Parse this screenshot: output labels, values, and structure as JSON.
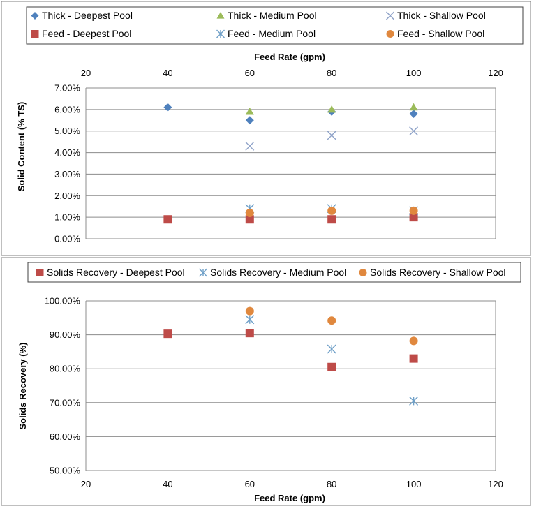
{
  "colors": {
    "deepest": "#be4b48",
    "deepest_diamond": "#4f81bd",
    "medium": "#9bbb59",
    "shallow_x": "#8ea2c8",
    "feed_medium": "#6fa0c8",
    "shallow": "#e0883e",
    "grid": "#8c8c8c",
    "frame": "#7f7f7f"
  },
  "chart_data": [
    {
      "type": "scatter",
      "title": "",
      "xlabel": "Feed Rate (gpm)",
      "ylabel": "Solid Content (% TS)",
      "xlim": [
        20,
        120
      ],
      "x_ticks": [
        "20",
        "40",
        "60",
        "80",
        "100",
        "120"
      ],
      "x_tick_values": [
        20,
        40,
        60,
        80,
        100,
        120
      ],
      "ylim": [
        0,
        7
      ],
      "y_ticks": [
        "0.00%",
        "1.00%",
        "2.00%",
        "3.00%",
        "4.00%",
        "5.00%",
        "6.00%",
        "7.00%"
      ],
      "y_tick_values": [
        0,
        1,
        2,
        3,
        4,
        5,
        6,
        7
      ],
      "x_axis_position": "top",
      "grid": true,
      "legend_position": "top",
      "series": [
        {
          "name": "Thick - Deepest Pool",
          "marker": "diamond",
          "color_key": "deepest_diamond",
          "x": [
            40,
            60,
            80,
            100
          ],
          "y": [
            6.1,
            5.5,
            5.9,
            5.8
          ]
        },
        {
          "name": "Thick - Medium Pool",
          "marker": "triangle",
          "color_key": "medium",
          "x": [
            60,
            80,
            100
          ],
          "y": [
            5.9,
            6.0,
            6.1
          ]
        },
        {
          "name": "Thick - Shallow Pool",
          "marker": "x",
          "color_key": "shallow_x",
          "x": [
            60,
            80,
            100
          ],
          "y": [
            4.3,
            4.8,
            5.0
          ]
        },
        {
          "name": "Feed - Deepest Pool",
          "marker": "square",
          "color_key": "deepest",
          "x": [
            40,
            60,
            80,
            100
          ],
          "y": [
            0.9,
            0.9,
            0.9,
            1.0
          ]
        },
        {
          "name": "Feed - Medium Pool",
          "marker": "asterisk",
          "color_key": "feed_medium",
          "x": [
            60,
            80,
            100
          ],
          "y": [
            1.4,
            1.4,
            1.3
          ]
        },
        {
          "name": "Feed - Shallow Pool",
          "marker": "circle",
          "color_key": "shallow",
          "x": [
            60,
            80,
            100
          ],
          "y": [
            1.2,
            1.3,
            1.3
          ]
        }
      ]
    },
    {
      "type": "scatter",
      "title": "",
      "xlabel": "Feed Rate (gpm)",
      "ylabel": "Solids Recovery (%)",
      "xlim": [
        20,
        120
      ],
      "x_ticks": [
        "20",
        "40",
        "60",
        "80",
        "100",
        "120"
      ],
      "x_tick_values": [
        20,
        40,
        60,
        80,
        100,
        120
      ],
      "ylim": [
        50,
        100
      ],
      "y_ticks": [
        "50.00%",
        "60.00%",
        "70.00%",
        "80.00%",
        "90.00%",
        "100.00%"
      ],
      "y_tick_values": [
        50,
        60,
        70,
        80,
        90,
        100
      ],
      "x_axis_position": "bottom",
      "grid": true,
      "legend_position": "top",
      "series": [
        {
          "name": "Solids Recovery - Deepest Pool",
          "marker": "square",
          "color_key": "deepest",
          "x": [
            40,
            60,
            80,
            100
          ],
          "y": [
            90.3,
            90.5,
            80.5,
            83.0
          ]
        },
        {
          "name": "Solids Recovery - Medium Pool",
          "marker": "asterisk",
          "color_key": "feed_medium",
          "x": [
            60,
            80,
            100
          ],
          "y": [
            94.5,
            85.8,
            70.5
          ]
        },
        {
          "name": "Solids Recovery - Shallow Pool",
          "marker": "circle",
          "color_key": "shallow",
          "x": [
            60,
            80,
            100
          ],
          "y": [
            97.0,
            94.2,
            88.2
          ]
        }
      ]
    }
  ]
}
